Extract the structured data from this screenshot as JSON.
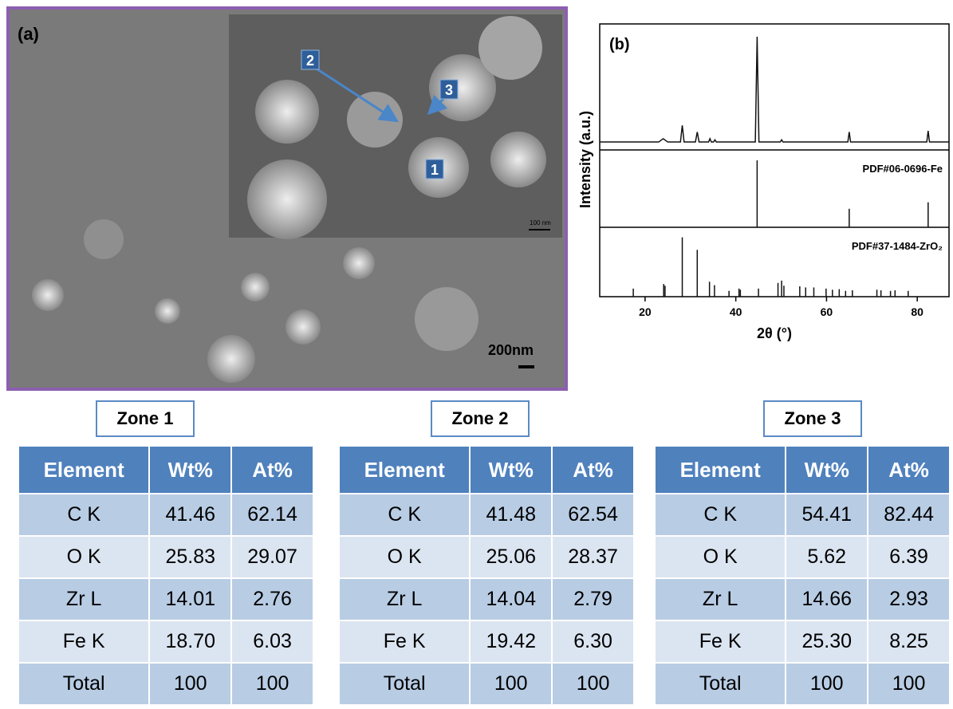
{
  "panel_a": {
    "label": "(a)",
    "scale_bar": "200nm",
    "inset_scale_bar": "100 nm",
    "zone_markers": [
      "1",
      "2",
      "3"
    ]
  },
  "chart_data": [
    {
      "type": "line",
      "label": "(b)",
      "ylabel": "Intensity (a.u.)",
      "color": "#111111",
      "xlim": [
        10,
        87
      ],
      "ylim": [
        0,
        105
      ],
      "x": [
        10,
        23,
        24,
        25,
        27.8,
        28.2,
        28.6,
        31.1,
        31.5,
        31.9,
        34,
        34.3,
        34.6,
        35.1,
        35.4,
        35.7,
        44.3,
        44.7,
        45.1,
        49.8,
        50.1,
        50.4,
        64.7,
        65,
        65.3,
        82.1,
        82.4,
        82.7,
        87
      ],
      "values": [
        5,
        5,
        8,
        5,
        5,
        20,
        5,
        5,
        14,
        5,
        5,
        8,
        5,
        5,
        7,
        5,
        5,
        100,
        5,
        5,
        7,
        5,
        5,
        14,
        5,
        5,
        15,
        5,
        5
      ]
    },
    {
      "type": "stick",
      "annotation": "PDF#06-0696-Fe",
      "color": "#111111",
      "xlim": [
        10,
        87
      ],
      "ylim": [
        0,
        105
      ],
      "x": [
        44.7,
        65,
        82.4
      ],
      "values": [
        100,
        25,
        35
      ]
    },
    {
      "type": "stick",
      "annotation": "PDF#37-1484-ZrO₂",
      "color": "#111111",
      "xlim": [
        10,
        87
      ],
      "ylim": [
        0,
        105
      ],
      "xlabel": "2θ (°)",
      "xticks": [
        20,
        40,
        60,
        80
      ],
      "x": [
        17.4,
        24.1,
        24.4,
        28.2,
        31.5,
        34.2,
        35.3,
        38.5,
        40.7,
        41,
        45,
        49.3,
        50.1,
        50.6,
        54.1,
        55.4,
        57.2,
        59.9,
        61.3,
        62.8,
        64.2,
        65.7,
        71.1,
        72,
        74.1,
        75.1,
        78
      ],
      "values": [
        10,
        18,
        15,
        100,
        78,
        22,
        16,
        6,
        10,
        8,
        10,
        20,
        24,
        15,
        14,
        12,
        12,
        10,
        8,
        9,
        6,
        7,
        8,
        7,
        6,
        7,
        6
      ]
    }
  ],
  "tables": [
    {
      "title": "Zone 1",
      "header": [
        "Element",
        "Wt%",
        "At%"
      ],
      "rows": [
        [
          "C K",
          "41.46",
          "62.14"
        ],
        [
          "O K",
          "25.83",
          "29.07"
        ],
        [
          "Zr L",
          "14.01",
          "2.76"
        ],
        [
          "Fe K",
          "18.70",
          "6.03"
        ],
        [
          "Total",
          "100",
          "100"
        ]
      ]
    },
    {
      "title": "Zone 2",
      "header": [
        "Element",
        "Wt%",
        "At%"
      ],
      "rows": [
        [
          "C K",
          "41.48",
          "62.54"
        ],
        [
          "O K",
          "25.06",
          "28.37"
        ],
        [
          "Zr L",
          "14.04",
          "2.79"
        ],
        [
          "Fe K",
          "19.42",
          "6.30"
        ],
        [
          "Total",
          "100",
          "100"
        ]
      ]
    },
    {
      "title": "Zone 3",
      "header": [
        "Element",
        "Wt%",
        "At%"
      ],
      "rows": [
        [
          "C K",
          "54.41",
          "82.44"
        ],
        [
          "O K",
          "5.62",
          "6.39"
        ],
        [
          "Zr L",
          "14.66",
          "2.93"
        ],
        [
          "Fe K",
          "25.30",
          "8.25"
        ],
        [
          "Total",
          "100",
          "100"
        ]
      ]
    }
  ]
}
